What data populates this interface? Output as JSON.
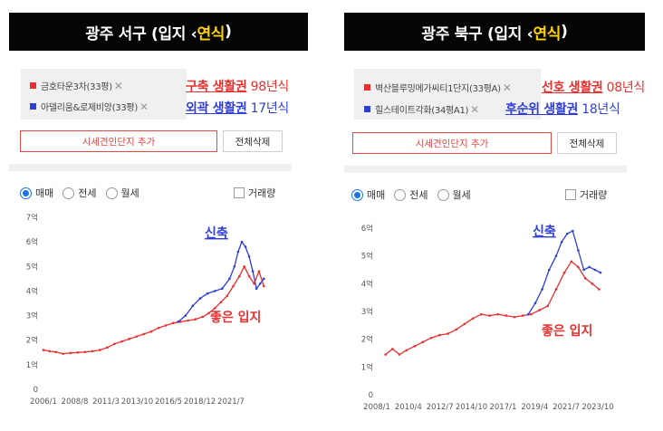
{
  "left": {
    "title": {
      "prefix": "광주 서구 (입지 ‹ ",
      "highlight": "연식",
      "suffix": ")"
    },
    "items": [
      {
        "name": "금호타운3차(33평)",
        "color": "#e8302e",
        "anno_bold": "구축 생활권",
        "anno_rest": " 98년식",
        "anno_color": "#e8302e"
      },
      {
        "name": "아델리움&로제비앙(33평)",
        "color": "#2f3fd6",
        "anno_bold": "외곽 생활권",
        "anno_rest": " 17년식",
        "anno_color": "#2f3fd6"
      }
    ],
    "add_button": "시세견인단지 추가",
    "delete_button": "전체삭제",
    "radios": [
      "매매",
      "전세",
      "월세"
    ],
    "selected_radio": "매매",
    "volume_label": "거래량",
    "chart_labels": {
      "new": "신축",
      "good": "좋은 입지"
    }
  },
  "right": {
    "title": {
      "prefix": "광주 북구 (입지 ‹ ",
      "highlight": "연식",
      "suffix": ")"
    },
    "items": [
      {
        "name": "벽산블루밍메가씨티1단지(33평A)",
        "color": "#e8302e",
        "anno_bold": "선호 생활권",
        "anno_rest": " 08년식",
        "anno_color": "#e8302e"
      },
      {
        "name": "힐스테이트각화(34평A1)",
        "color": "#2f3fd6",
        "anno_bold": "후순위 생활권",
        "anno_rest": " 18년식",
        "anno_color": "#2f3fd6"
      }
    ],
    "add_button": "시세견인단지 추가",
    "delete_button": "전체삭제",
    "radios": [
      "매매",
      "전세",
      "월세"
    ],
    "selected_radio": "매매",
    "volume_label": "거래량",
    "chart_labels": {
      "new": "신축",
      "good": "좋은 입지"
    }
  },
  "chart_data": [
    {
      "type": "line",
      "x_ticks": [
        "2006/1",
        "2008/8",
        "2011/3",
        "2013/10",
        "2016/5",
        "2018/12",
        "2021/7"
      ],
      "y_ticks": [
        "0",
        "1억",
        "2억",
        "3억",
        "4억",
        "5억",
        "6억",
        "7억"
      ],
      "ylim": [
        0,
        7
      ],
      "xlim": [
        2006.0,
        2024.2
      ],
      "series": [
        {
          "name": "금호타운3차(33평)",
          "color": "#e8302e",
          "points": [
            [
              2006.0,
              1.6
            ],
            [
              2006.5,
              1.55
            ],
            [
              2007.0,
              1.52
            ],
            [
              2007.6,
              1.45
            ],
            [
              2008.2,
              1.48
            ],
            [
              2008.8,
              1.5
            ],
            [
              2009.4,
              1.52
            ],
            [
              2010.0,
              1.55
            ],
            [
              2010.6,
              1.6
            ],
            [
              2011.2,
              1.7
            ],
            [
              2011.8,
              1.85
            ],
            [
              2012.4,
              1.95
            ],
            [
              2013.0,
              2.05
            ],
            [
              2013.6,
              2.15
            ],
            [
              2014.2,
              2.25
            ],
            [
              2014.8,
              2.35
            ],
            [
              2015.4,
              2.5
            ],
            [
              2016.0,
              2.6
            ],
            [
              2016.6,
              2.7
            ],
            [
              2017.2,
              2.75
            ],
            [
              2017.8,
              2.8
            ],
            [
              2018.4,
              2.85
            ],
            [
              2019.0,
              2.95
            ],
            [
              2019.5,
              3.1
            ],
            [
              2020.0,
              3.3
            ],
            [
              2020.5,
              3.55
            ],
            [
              2021.0,
              3.8
            ],
            [
              2021.5,
              4.2
            ],
            [
              2022.0,
              4.6
            ],
            [
              2022.4,
              5.0
            ],
            [
              2022.8,
              4.6
            ],
            [
              2023.2,
              4.3
            ],
            [
              2023.6,
              4.8
            ],
            [
              2024.0,
              4.2
            ]
          ]
        },
        {
          "name": "아델리움&로제비앙(33평)",
          "color": "#2f3fd6",
          "points": [
            [
              2017.0,
              2.75
            ],
            [
              2017.6,
              3.0
            ],
            [
              2018.2,
              3.4
            ],
            [
              2018.8,
              3.7
            ],
            [
              2019.4,
              3.9
            ],
            [
              2020.0,
              4.0
            ],
            [
              2020.6,
              4.1
            ],
            [
              2021.2,
              4.5
            ],
            [
              2021.6,
              5.0
            ],
            [
              2021.9,
              5.6
            ],
            [
              2022.2,
              6.0
            ],
            [
              2022.5,
              5.8
            ],
            [
              2022.8,
              5.4
            ],
            [
              2023.1,
              4.8
            ],
            [
              2023.4,
              4.1
            ],
            [
              2023.7,
              4.3
            ],
            [
              2024.0,
              4.5
            ]
          ]
        }
      ]
    },
    {
      "type": "line",
      "x_ticks": [
        "2008/1",
        "2010/4",
        "2012/7",
        "2014/10",
        "2017/1",
        "2019/4",
        "2021/7",
        "2023/10"
      ],
      "y_ticks": [
        "0",
        "1억",
        "2억",
        "3억",
        "4억",
        "5억",
        "6억"
      ],
      "ylim": [
        0,
        6
      ],
      "xlim": [
        2008.0,
        2024.2
      ],
      "series": [
        {
          "name": "벽산블루밍메가씨티1단지(33평A)",
          "color": "#e8302e",
          "points": [
            [
              2008.5,
              1.45
            ],
            [
              2009.0,
              1.65
            ],
            [
              2009.5,
              1.45
            ],
            [
              2010.0,
              1.6
            ],
            [
              2010.6,
              1.75
            ],
            [
              2011.2,
              1.9
            ],
            [
              2011.8,
              2.05
            ],
            [
              2012.4,
              2.15
            ],
            [
              2013.0,
              2.2
            ],
            [
              2013.6,
              2.35
            ],
            [
              2014.2,
              2.55
            ],
            [
              2014.8,
              2.75
            ],
            [
              2015.4,
              2.9
            ],
            [
              2016.0,
              2.85
            ],
            [
              2016.6,
              2.9
            ],
            [
              2017.2,
              2.85
            ],
            [
              2017.8,
              2.8
            ],
            [
              2018.4,
              2.85
            ],
            [
              2019.0,
              2.9
            ],
            [
              2019.6,
              3.05
            ],
            [
              2020.2,
              3.2
            ],
            [
              2020.8,
              3.8
            ],
            [
              2021.4,
              4.4
            ],
            [
              2021.9,
              4.8
            ],
            [
              2022.4,
              4.6
            ],
            [
              2022.9,
              4.2
            ],
            [
              2023.4,
              4.0
            ],
            [
              2023.9,
              3.8
            ]
          ]
        },
        {
          "name": "힐스테이트각화(34평A1)",
          "color": "#2f3fd6",
          "points": [
            [
              2018.8,
              2.9
            ],
            [
              2019.3,
              3.3
            ],
            [
              2019.8,
              3.8
            ],
            [
              2020.3,
              4.5
            ],
            [
              2020.8,
              5.0
            ],
            [
              2021.2,
              5.5
            ],
            [
              2021.6,
              5.8
            ],
            [
              2022.0,
              5.9
            ],
            [
              2022.4,
              5.2
            ],
            [
              2022.8,
              4.5
            ],
            [
              2023.2,
              4.6
            ],
            [
              2023.6,
              4.5
            ],
            [
              2024.0,
              4.4
            ]
          ]
        }
      ]
    }
  ]
}
